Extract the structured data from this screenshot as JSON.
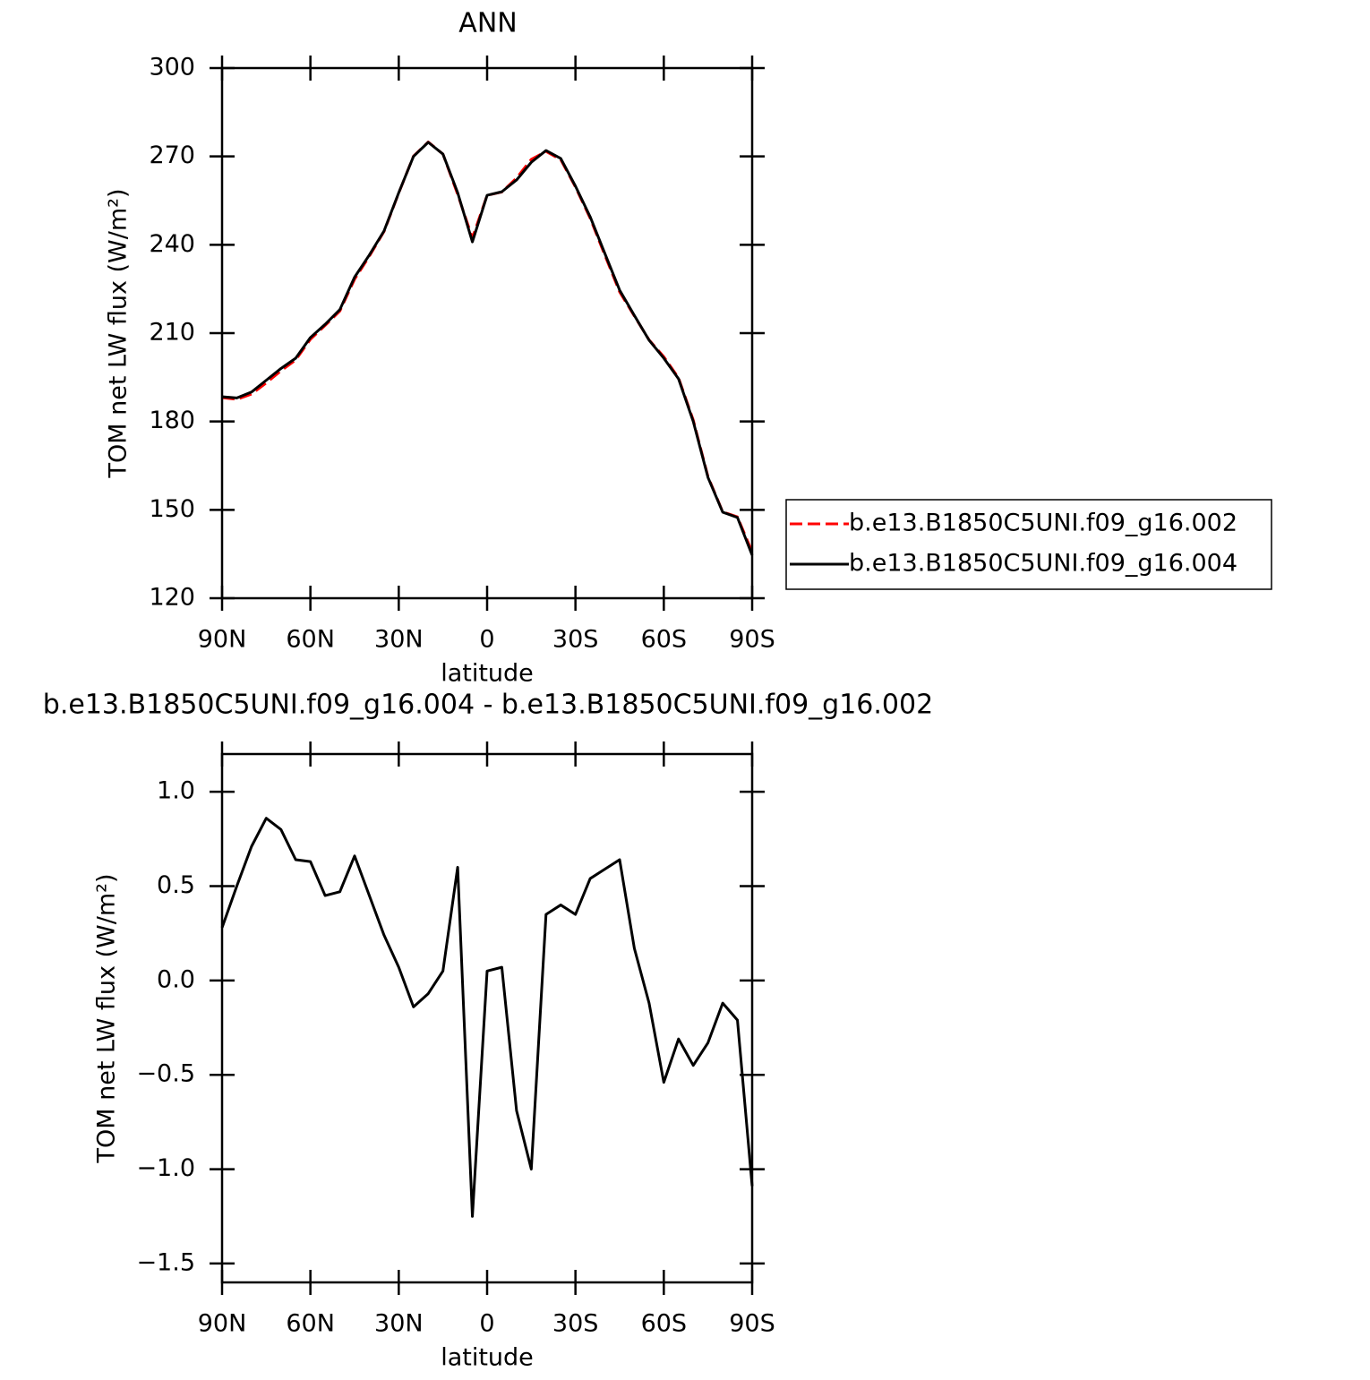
{
  "chart_data": [
    {
      "type": "line",
      "title": "ANN",
      "xlabel": "latitude",
      "ylabel": "TOM net LW flux (W/m²)",
      "x": [
        90,
        85,
        80,
        75,
        70,
        65,
        60,
        55,
        50,
        45,
        40,
        35,
        30,
        25,
        20,
        15,
        10,
        5,
        0,
        -5,
        -10,
        -15,
        -20,
        -25,
        -30,
        -35,
        -40,
        -45,
        -50,
        -55,
        -60,
        -65,
        -70,
        -75,
        -80,
        -85,
        -90
      ],
      "xlim": [
        90,
        -90
      ],
      "xticks": [
        {
          "value": 90,
          "label": "90N"
        },
        {
          "value": 60,
          "label": "60N"
        },
        {
          "value": 30,
          "label": "30N"
        },
        0,
        {
          "value": -30,
          "label": "30S"
        },
        {
          "value": -60,
          "label": "60S"
        },
        {
          "value": -90,
          "label": "90S"
        }
      ],
      "ylim": [
        120,
        300
      ],
      "yticks": [
        120,
        150,
        180,
        210,
        240,
        270,
        300
      ],
      "grid": false,
      "legend": "right",
      "series": [
        {
          "name": "b.e13.B1850C5UNI.f09_g16.002",
          "color": "#ff0000",
          "dashed": true,
          "values": [
            188.1,
            187.5,
            189.3,
            193.1,
            197.2,
            200.9,
            207.9,
            212.6,
            217.5,
            228.3,
            236.1,
            244.5,
            257.6,
            270.1,
            274.9,
            270.8,
            257.1,
            242.3,
            256.8,
            257.9,
            262.7,
            269,
            271.7,
            268.9,
            259.6,
            249,
            236.4,
            224,
            215.8,
            207.7,
            202,
            194.8,
            180.5,
            161.3,
            149.3,
            147.6,
            135.7
          ]
        },
        {
          "name": "b.e13.B1850C5UNI.f09_g16.004",
          "color": "#000000",
          "dashed": false,
          "values": [
            188.4,
            188,
            190,
            194,
            198,
            201.5,
            208.5,
            213,
            218,
            229,
            236.5,
            244.7,
            257.7,
            270,
            274.8,
            270.8,
            257.7,
            241,
            256.8,
            258,
            262,
            268,
            272,
            269.3,
            259.9,
            249.5,
            237,
            224.6,
            216,
            207.6,
            201.5,
            194.5,
            180,
            161,
            149.2,
            147.4,
            134.6
          ]
        }
      ]
    },
    {
      "type": "line",
      "title": "b.e13.B1850C5UNI.f09_g16.004 - b.e13.B1850C5UNI.f09_g16.002",
      "xlabel": "latitude",
      "ylabel": "TOM net LW flux (W/m²)",
      "x": [
        90,
        85,
        80,
        75,
        70,
        65,
        60,
        55,
        50,
        45,
        40,
        35,
        30,
        25,
        20,
        15,
        10,
        5,
        0,
        -5,
        -10,
        -15,
        -20,
        -25,
        -30,
        -35,
        -40,
        -45,
        -50,
        -55,
        -60,
        -65,
        -70,
        -75,
        -80,
        -85,
        -90
      ],
      "xlim": [
        90,
        -90
      ],
      "xticks": [
        {
          "value": 90,
          "label": "90N"
        },
        {
          "value": 60,
          "label": "60N"
        },
        {
          "value": 30,
          "label": "30N"
        },
        0,
        {
          "value": -30,
          "label": "30S"
        },
        {
          "value": -60,
          "label": "60S"
        },
        {
          "value": -90,
          "label": "90S"
        }
      ],
      "ylim": [
        -1.6,
        1.2
      ],
      "yticks": [
        {
          "value": -1.5,
          "label": "−1.5"
        },
        {
          "value": -1,
          "label": "−1.0"
        },
        {
          "value": -0.5,
          "label": "−0.5"
        },
        {
          "value": 0,
          "label": "0.0"
        },
        0.5,
        {
          "value": 1,
          "label": "1.0"
        }
      ],
      "grid": false,
      "color": "#000000",
      "values": [
        0.28,
        0.5,
        0.71,
        0.86,
        0.8,
        0.64,
        0.63,
        0.45,
        0.47,
        0.66,
        0.45,
        0.24,
        0.07,
        -0.14,
        -0.07,
        0.05,
        0.6,
        -1.25,
        0.05,
        0.07,
        -0.69,
        -1.0,
        0.35,
        0.4,
        0.35,
        0.54,
        0.59,
        0.64,
        0.17,
        -0.12,
        -0.54,
        -0.31,
        -0.45,
        -0.33,
        -0.12,
        -0.21,
        -1.09
      ]
    }
  ]
}
